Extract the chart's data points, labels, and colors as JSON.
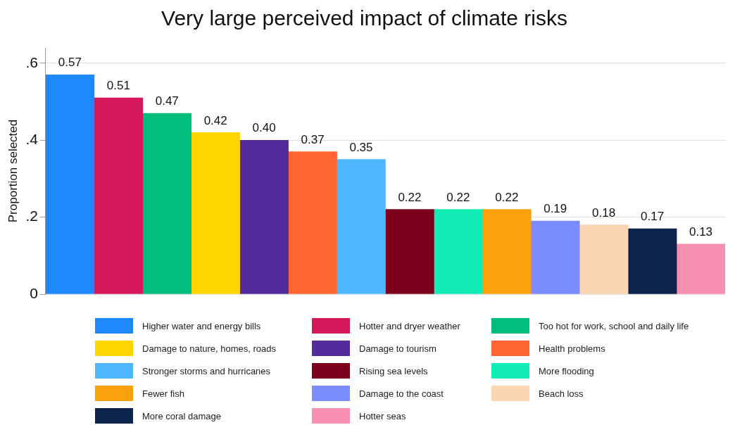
{
  "chart_data": {
    "type": "bar",
    "title": "Very large perceived impact of climate risks",
    "ylabel": "Proportion selected",
    "categories": [
      null,
      null,
      null,
      null,
      null,
      null,
      null,
      null,
      null,
      null,
      null,
      null,
      null,
      null
    ],
    "ylim": [
      0,
      0.64
    ],
    "yticks": [
      {
        "value": 0,
        "label": "0"
      },
      {
        "value": 0.2,
        "label": ".2"
      },
      {
        "value": 0.4,
        "label": ".4"
      },
      {
        "value": 0.6,
        "label": ".6"
      }
    ],
    "grid": "y",
    "legend": "bottom",
    "tick_labels": "y",
    "series": [
      {
        "name": "Higher water and energy bills",
        "color": "#1e88ff",
        "values": [
          0.57,
          null,
          null,
          null,
          null,
          null,
          null,
          null,
          null,
          null,
          null,
          null,
          null,
          null
        ],
        "value_labels": [
          "0.57",
          null,
          null,
          null,
          null,
          null,
          null,
          null,
          null,
          null,
          null,
          null,
          null,
          null
        ]
      },
      {
        "name": "Hotter and dryer weather",
        "color": "#d5175b",
        "values": [
          null,
          0.51,
          null,
          null,
          null,
          null,
          null,
          null,
          null,
          null,
          null,
          null,
          null,
          null
        ],
        "value_labels": [
          null,
          "0.51",
          null,
          null,
          null,
          null,
          null,
          null,
          null,
          null,
          null,
          null,
          null,
          null
        ]
      },
      {
        "name": "Too hot for work, school and daily life",
        "color": "#00bd7e",
        "values": [
          null,
          null,
          0.47,
          null,
          null,
          null,
          null,
          null,
          null,
          null,
          null,
          null,
          null,
          null
        ],
        "value_labels": [
          null,
          null,
          "0.47",
          null,
          null,
          null,
          null,
          null,
          null,
          null,
          null,
          null,
          null,
          null
        ]
      },
      {
        "name": "Damage to nature, homes, roads",
        "color": "#ffd500",
        "values": [
          null,
          null,
          null,
          0.42,
          null,
          null,
          null,
          null,
          null,
          null,
          null,
          null,
          null,
          null
        ],
        "value_labels": [
          null,
          null,
          null,
          "0.42",
          null,
          null,
          null,
          null,
          null,
          null,
          null,
          null,
          null,
          null
        ]
      },
      {
        "name": "Damage to tourism",
        "color": "#532b9a",
        "values": [
          null,
          null,
          null,
          null,
          0.4,
          null,
          null,
          null,
          null,
          null,
          null,
          null,
          null,
          null
        ],
        "value_labels": [
          null,
          null,
          null,
          null,
          "0.40",
          null,
          null,
          null,
          null,
          null,
          null,
          null,
          null,
          null
        ]
      },
      {
        "name": "Health problems",
        "color": "#ff6634",
        "values": [
          null,
          null,
          null,
          null,
          null,
          0.37,
          null,
          null,
          null,
          null,
          null,
          null,
          null,
          null
        ],
        "value_labels": [
          null,
          null,
          null,
          null,
          null,
          "0.37",
          null,
          null,
          null,
          null,
          null,
          null,
          null,
          null
        ]
      },
      {
        "name": "Stronger storms and hurricanes",
        "color": "#4db8ff",
        "values": [
          null,
          null,
          null,
          null,
          null,
          null,
          0.35,
          null,
          null,
          null,
          null,
          null,
          null,
          null
        ],
        "value_labels": [
          null,
          null,
          null,
          null,
          null,
          null,
          "0.35",
          null,
          null,
          null,
          null,
          null,
          null,
          null
        ]
      },
      {
        "name": "Rising sea levels",
        "color": "#7c0019",
        "values": [
          null,
          null,
          null,
          null,
          null,
          null,
          null,
          0.22,
          null,
          null,
          null,
          null,
          null,
          null
        ],
        "value_labels": [
          null,
          null,
          null,
          null,
          null,
          null,
          null,
          "0.22",
          null,
          null,
          null,
          null,
          null,
          null
        ]
      },
      {
        "name": "More flooding",
        "color": "#11edb4",
        "values": [
          null,
          null,
          null,
          null,
          null,
          null,
          null,
          null,
          0.22,
          null,
          null,
          null,
          null,
          null
        ],
        "value_labels": [
          null,
          null,
          null,
          null,
          null,
          null,
          null,
          null,
          "0.22",
          null,
          null,
          null,
          null,
          null
        ]
      },
      {
        "name": "Fewer fish",
        "color": "#f8a10d",
        "values": [
          null,
          null,
          null,
          null,
          null,
          null,
          null,
          null,
          null,
          0.22,
          null,
          null,
          null,
          null
        ],
        "value_labels": [
          null,
          null,
          null,
          null,
          null,
          null,
          null,
          null,
          null,
          "0.22",
          null,
          null,
          null,
          null
        ]
      },
      {
        "name": "Damage to the coast",
        "color": "#7b8cff",
        "values": [
          null,
          null,
          null,
          null,
          null,
          null,
          null,
          null,
          null,
          null,
          0.19,
          null,
          null,
          null
        ],
        "value_labels": [
          null,
          null,
          null,
          null,
          null,
          null,
          null,
          null,
          null,
          null,
          "0.19",
          null,
          null,
          null
        ]
      },
      {
        "name": "Beach loss",
        "color": "#fbd6b2",
        "values": [
          null,
          null,
          null,
          null,
          null,
          null,
          null,
          null,
          null,
          null,
          null,
          0.18,
          null,
          null
        ],
        "value_labels": [
          null,
          null,
          null,
          null,
          null,
          null,
          null,
          null,
          null,
          null,
          null,
          "0.18",
          null,
          null
        ]
      },
      {
        "name": "More coral damage",
        "color": "#0c234b",
        "values": [
          null,
          null,
          null,
          null,
          null,
          null,
          null,
          null,
          null,
          null,
          null,
          null,
          0.17,
          null
        ],
        "value_labels": [
          null,
          null,
          null,
          null,
          null,
          null,
          null,
          null,
          null,
          null,
          null,
          null,
          "0.17",
          null
        ]
      },
      {
        "name": "Hotter seas",
        "color": "#f78fb0",
        "values": [
          null,
          null,
          null,
          null,
          null,
          null,
          null,
          null,
          null,
          null,
          null,
          null,
          null,
          0.13
        ],
        "value_labels": [
          null,
          null,
          null,
          null,
          null,
          null,
          null,
          null,
          null,
          null,
          null,
          null,
          null,
          "0.13"
        ]
      }
    ]
  }
}
